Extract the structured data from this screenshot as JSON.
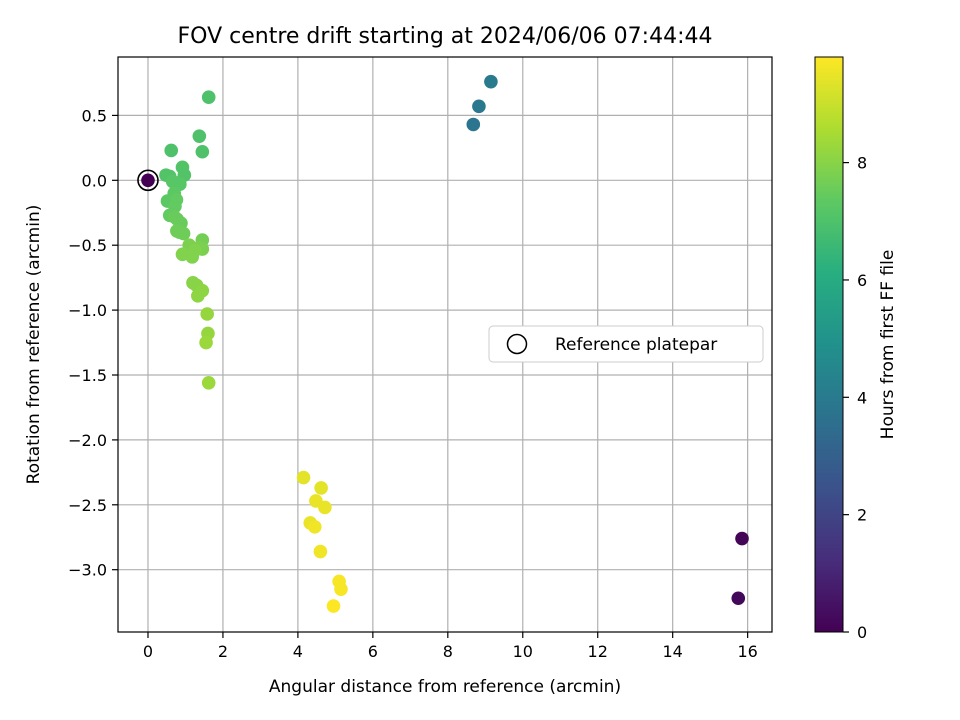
{
  "chart_data": {
    "type": "scatter",
    "title": "FOV centre drift starting at 2024/06/06 07:44:44",
    "xlabel": "Angular distance from reference (arcmin)",
    "ylabel": "Rotation from reference (arcmin)",
    "xlim": [
      -0.8,
      16.65
    ],
    "ylim": [
      -3.48,
      0.95
    ],
    "xticks": [
      0,
      2,
      4,
      6,
      8,
      10,
      12,
      14,
      16
    ],
    "xtick_labels": [
      "0",
      "2",
      "4",
      "6",
      "8",
      "10",
      "12",
      "14",
      "16"
    ],
    "yticks": [
      0.5,
      0.0,
      -0.5,
      -1.0,
      -1.5,
      -2.0,
      -2.5,
      -3.0
    ],
    "ytick_labels": [
      "0.5",
      "0.0",
      "−0.5",
      "−1.0",
      "−1.5",
      "−2.0",
      "−2.5",
      "−3.0"
    ],
    "grid": true,
    "colormap": "viridis",
    "colorbar": {
      "label": "Hours from first FF file",
      "range": [
        0,
        9.8
      ],
      "ticks": [
        0,
        2,
        4,
        6,
        8
      ],
      "tick_labels": [
        "0",
        "2",
        "4",
        "6",
        "8"
      ]
    },
    "legend": {
      "placement": "center-right",
      "entries": [
        {
          "label": "Reference platepar",
          "marker": "open-circle",
          "x": 0.0,
          "y": 0.0
        }
      ]
    },
    "points": [
      {
        "x": 0.0,
        "y": 0.0,
        "hours": 0.0
      },
      {
        "x": 15.85,
        "y": -2.76,
        "hours": 0.1
      },
      {
        "x": 15.75,
        "y": -3.22,
        "hours": 0.2
      },
      {
        "x": 8.68,
        "y": 0.43,
        "hours": 3.8
      },
      {
        "x": 8.83,
        "y": 0.57,
        "hours": 3.9
      },
      {
        "x": 9.15,
        "y": 0.76,
        "hours": 4.0
      },
      {
        "x": 1.62,
        "y": 0.64,
        "hours": 7.0
      },
      {
        "x": 1.37,
        "y": 0.34,
        "hours": 7.0
      },
      {
        "x": 1.45,
        "y": 0.22,
        "hours": 7.0
      },
      {
        "x": 0.62,
        "y": 0.23,
        "hours": 7.0
      },
      {
        "x": 0.92,
        "y": 0.1,
        "hours": 7.1
      },
      {
        "x": 0.97,
        "y": 0.04,
        "hours": 7.1
      },
      {
        "x": 0.48,
        "y": 0.04,
        "hours": 7.1
      },
      {
        "x": 0.58,
        "y": 0.03,
        "hours": 7.1
      },
      {
        "x": 0.66,
        "y": -0.01,
        "hours": 7.2
      },
      {
        "x": 0.77,
        "y": -0.02,
        "hours": 7.2
      },
      {
        "x": 0.85,
        "y": -0.03,
        "hours": 7.2
      },
      {
        "x": 0.7,
        "y": -0.1,
        "hours": 7.3
      },
      {
        "x": 0.52,
        "y": -0.16,
        "hours": 7.3
      },
      {
        "x": 0.62,
        "y": -0.16,
        "hours": 7.3
      },
      {
        "x": 0.76,
        "y": -0.15,
        "hours": 7.4
      },
      {
        "x": 0.72,
        "y": -0.2,
        "hours": 7.4
      },
      {
        "x": 0.58,
        "y": -0.27,
        "hours": 7.4
      },
      {
        "x": 0.7,
        "y": -0.28,
        "hours": 7.5
      },
      {
        "x": 0.78,
        "y": -0.3,
        "hours": 7.5
      },
      {
        "x": 0.88,
        "y": -0.33,
        "hours": 7.5
      },
      {
        "x": 0.77,
        "y": -0.39,
        "hours": 7.6
      },
      {
        "x": 0.84,
        "y": -0.4,
        "hours": 7.6
      },
      {
        "x": 0.95,
        "y": -0.41,
        "hours": 7.6
      },
      {
        "x": 1.45,
        "y": -0.46,
        "hours": 7.7
      },
      {
        "x": 1.1,
        "y": -0.5,
        "hours": 7.8
      },
      {
        "x": 1.35,
        "y": -0.52,
        "hours": 7.8
      },
      {
        "x": 1.45,
        "y": -0.53,
        "hours": 7.8
      },
      {
        "x": 1.25,
        "y": -0.54,
        "hours": 7.9
      },
      {
        "x": 0.92,
        "y": -0.57,
        "hours": 7.9
      },
      {
        "x": 1.18,
        "y": -0.59,
        "hours": 7.9
      },
      {
        "x": 1.2,
        "y": -0.79,
        "hours": 8.0
      },
      {
        "x": 1.3,
        "y": -0.81,
        "hours": 8.0
      },
      {
        "x": 1.45,
        "y": -0.85,
        "hours": 8.1
      },
      {
        "x": 1.33,
        "y": -0.89,
        "hours": 8.1
      },
      {
        "x": 1.58,
        "y": -1.03,
        "hours": 8.2
      },
      {
        "x": 1.6,
        "y": -1.18,
        "hours": 8.2
      },
      {
        "x": 1.55,
        "y": -1.25,
        "hours": 8.3
      },
      {
        "x": 1.62,
        "y": -1.56,
        "hours": 8.3
      },
      {
        "x": 4.15,
        "y": -2.29,
        "hours": 9.4
      },
      {
        "x": 4.62,
        "y": -2.37,
        "hours": 9.4
      },
      {
        "x": 4.48,
        "y": -2.47,
        "hours": 9.5
      },
      {
        "x": 4.72,
        "y": -2.52,
        "hours": 9.5
      },
      {
        "x": 4.33,
        "y": -2.64,
        "hours": 9.5
      },
      {
        "x": 4.45,
        "y": -2.67,
        "hours": 9.6
      },
      {
        "x": 4.6,
        "y": -2.86,
        "hours": 9.6
      },
      {
        "x": 5.1,
        "y": -3.09,
        "hours": 9.7
      },
      {
        "x": 5.15,
        "y": -3.15,
        "hours": 9.7
      },
      {
        "x": 4.95,
        "y": -3.28,
        "hours": 9.8
      }
    ]
  }
}
